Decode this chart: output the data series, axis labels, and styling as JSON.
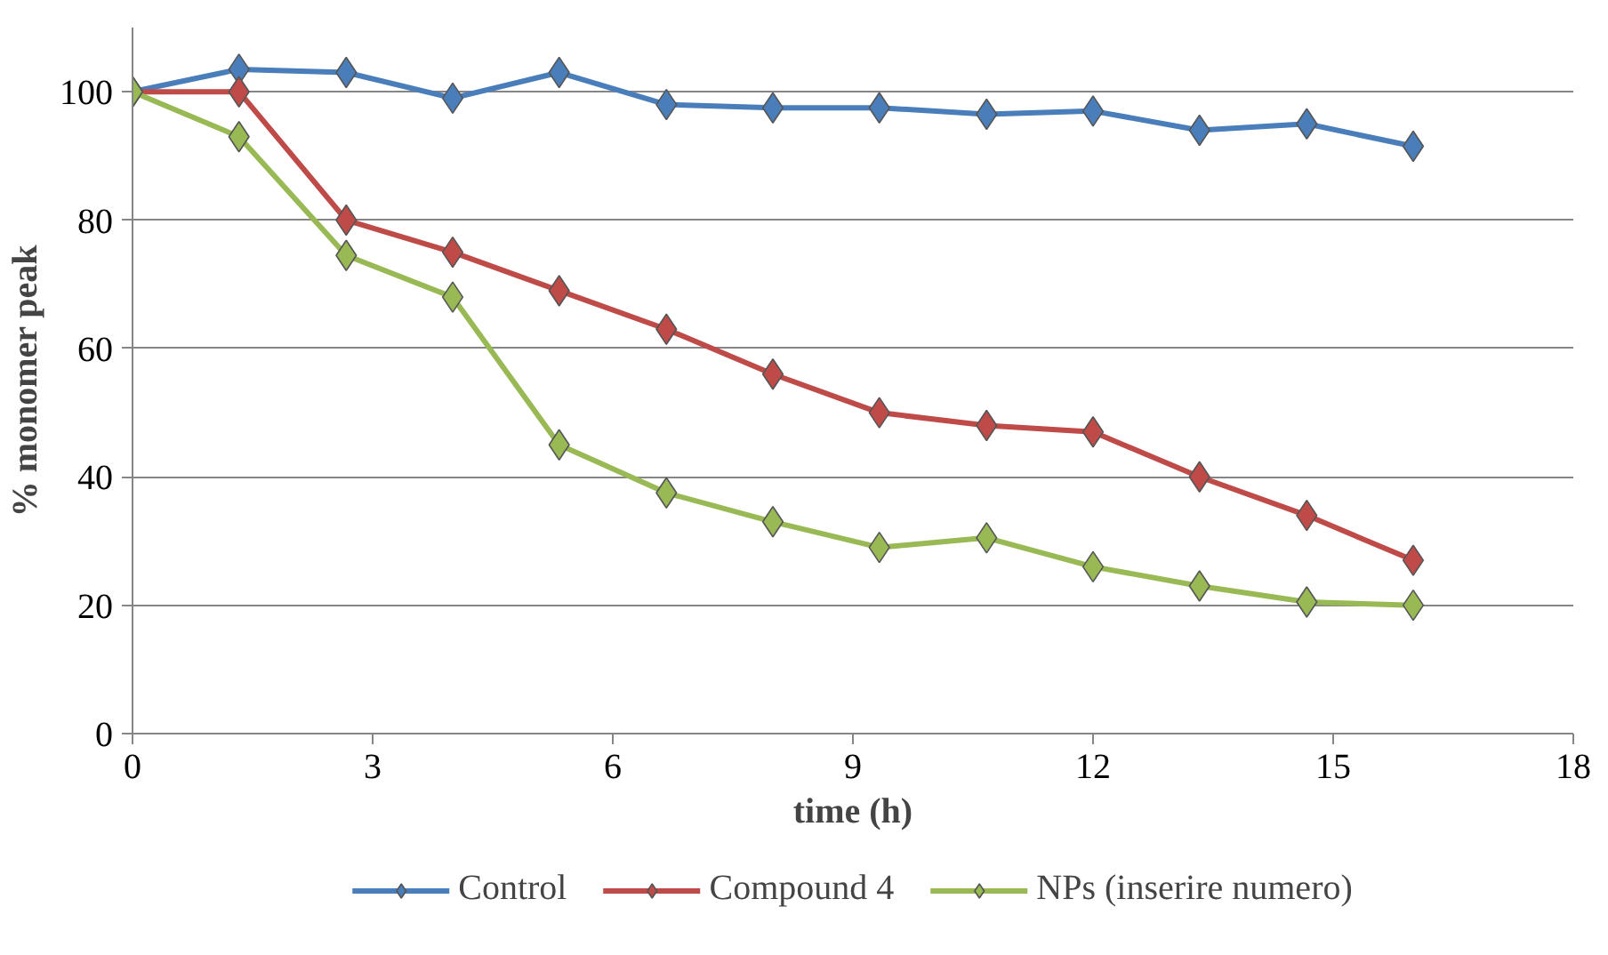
{
  "chart_data": {
    "type": "line",
    "xlabel": "time (h)",
    "ylabel": "% monomer peak",
    "x": [
      0,
      1.33,
      2.67,
      4,
      5.33,
      6.67,
      8,
      9.33,
      10.67,
      12,
      13.33,
      14.67,
      16
    ],
    "series": [
      {
        "name": "Control",
        "color": "#4a7ebb",
        "values": [
          100,
          103.5,
          103,
          99,
          103,
          98,
          97.5,
          97.5,
          96.5,
          97,
          94,
          95,
          91.5
        ]
      },
      {
        "name": "Compound 4",
        "color": "#be4b48",
        "values": [
          100,
          100,
          80,
          75,
          69,
          63,
          56,
          50,
          48,
          47,
          40,
          34,
          27
        ]
      },
      {
        "name": "NPs (inserire numero)",
        "color": "#98b954",
        "values": [
          100,
          93,
          74.5,
          68,
          45,
          37.5,
          33,
          29,
          30.5,
          26,
          23,
          20.5,
          20
        ]
      }
    ],
    "xlim": [
      0,
      18
    ],
    "xticks": [
      0,
      3,
      6,
      9,
      12,
      15,
      18
    ],
    "ylim": [
      0,
      110
    ],
    "yticks": [
      0,
      20,
      40,
      60,
      80,
      100
    ],
    "grid": "y",
    "legend": "bottom",
    "marker": "diamond",
    "line_style": "solid"
  }
}
